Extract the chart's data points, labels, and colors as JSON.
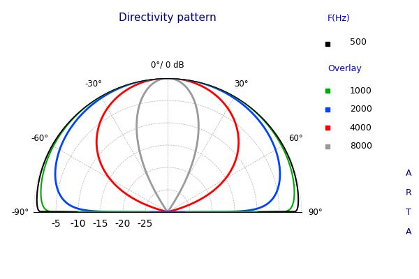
{
  "title": "Directivity pattern",
  "title_color": "#000080",
  "bg_color": "#ffffff",
  "grid_color": "#aaaaaa",
  "freq_params": {
    "500": {
      "n": 0.03,
      "color": "#000000",
      "lw": 1.5,
      "zorder": 5
    },
    "1000": {
      "n": 0.08,
      "color": "#00aa00",
      "lw": 1.5,
      "zorder": 4
    },
    "2000": {
      "n": 0.35,
      "color": "#0044ff",
      "lw": 2.0,
      "zorder": 3
    },
    "4000": {
      "n": 2.5,
      "color": "#ff0000",
      "lw": 2.0,
      "zorder": 2
    },
    "8000": {
      "n": 18.0,
      "color": "#999999",
      "lw": 2.0,
      "zorder": 1
    }
  },
  "r_ticks": [
    0,
    -5,
    -10,
    -15,
    -20,
    -25
  ],
  "r_labels": [
    "",
    "-5",
    "-10",
    "-15",
    "-20",
    "-25"
  ],
  "angle_ticks_deg": [
    -90,
    -60,
    -30,
    0,
    30,
    60,
    90
  ],
  "angle_tick_labels": [
    "-90°",
    "-60°",
    "-30°",
    "0°/ 0 dB",
    "30°",
    "60°",
    "90°"
  ],
  "legend_f_title": "F(Hz)",
  "legend_overlay_title": "Overlay",
  "legend_500_color": "#000000",
  "legend_overlay_entries": [
    {
      "label": "1000",
      "color": "#00aa00"
    },
    {
      "label": "2000",
      "color": "#0044ff"
    },
    {
      "label": "4000",
      "color": "#ff0000"
    },
    {
      "label": "8000",
      "color": "#999999"
    }
  ],
  "arta_color": "#000080"
}
